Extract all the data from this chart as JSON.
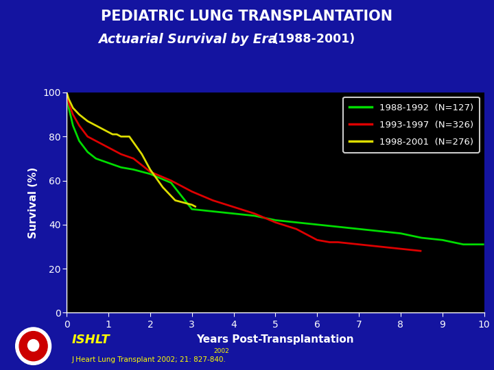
{
  "title_line1": "PEDIATRIC LUNG TRANSPLANTATION",
  "title_line2": "Actuarial Survival by Era",
  "title_year": "(1988-2001)",
  "xlabel": "Years Post-Transplantation",
  "ylabel": "Survival (%)",
  "background_outer": "#1414a0",
  "background_plot": "#000000",
  "xlim": [
    0,
    10
  ],
  "ylim": [
    0,
    100
  ],
  "xticks": [
    0,
    1,
    2,
    3,
    4,
    5,
    6,
    7,
    8,
    9,
    10
  ],
  "yticks": [
    0,
    20,
    40,
    60,
    80,
    100
  ],
  "series": [
    {
      "label": "1988-1992  (N=127)",
      "color": "#00dd00",
      "x": [
        0,
        0.05,
        0.15,
        0.3,
        0.5,
        0.7,
        1.0,
        1.3,
        1.6,
        2.0,
        2.5,
        3.0,
        3.5,
        4.0,
        4.5,
        5.0,
        5.5,
        6.0,
        6.5,
        7.0,
        7.5,
        8.0,
        8.5,
        9.0,
        9.5,
        10.0
      ],
      "y": [
        100,
        93,
        85,
        78,
        73,
        70,
        68,
        66,
        65,
        63,
        59,
        47,
        46,
        45,
        44,
        42,
        41,
        40,
        39,
        38,
        37,
        36,
        34,
        33,
        31,
        31
      ]
    },
    {
      "label": "1993-1997  (N=326)",
      "color": "#dd0000",
      "x": [
        0,
        0.05,
        0.15,
        0.3,
        0.5,
        0.7,
        1.0,
        1.3,
        1.6,
        2.0,
        2.5,
        3.0,
        3.5,
        4.0,
        4.5,
        5.0,
        5.5,
        6.0,
        6.3,
        6.5,
        7.0,
        7.5,
        8.0,
        8.5
      ],
      "y": [
        100,
        95,
        90,
        85,
        80,
        78,
        75,
        72,
        70,
        64,
        60,
        55,
        51,
        48,
        45,
        41,
        38,
        33,
        32,
        32,
        31,
        30,
        29,
        28
      ]
    },
    {
      "label": "1998-2001  (N=276)",
      "color": "#dddd00",
      "x": [
        0,
        0.05,
        0.15,
        0.3,
        0.5,
        0.7,
        0.9,
        1.0,
        1.1,
        1.2,
        1.3,
        1.5,
        1.8,
        2.0,
        2.3,
        2.6,
        3.0,
        3.1
      ],
      "y": [
        100,
        97,
        93,
        90,
        87,
        85,
        83,
        82,
        81,
        81,
        80,
        80,
        72,
        65,
        57,
        51,
        49,
        48
      ]
    }
  ],
  "legend_facecolor": "#000000",
  "legend_edgecolor": "#ffffff",
  "legend_textcolor": "#ffffff",
  "tick_color": "#ffffff",
  "axis_color": "#ffffff",
  "title_color": "#ffffff",
  "xlabel_color": "#ffffff",
  "ylabel_color": "#ffffff",
  "ishlt_text": "ISHLT",
  "journal_text": "J Heart Lung Transplant 2002; 21: 827-840.",
  "year_overlay": "2002",
  "footer_color": "#ffff00"
}
